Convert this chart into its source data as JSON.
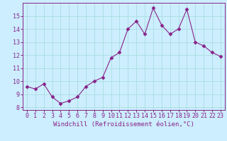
{
  "x": [
    0,
    1,
    2,
    3,
    4,
    5,
    6,
    7,
    8,
    9,
    10,
    11,
    12,
    13,
    14,
    15,
    16,
    17,
    18,
    19,
    20,
    21,
    22,
    23
  ],
  "y": [
    9.6,
    9.4,
    9.8,
    8.8,
    8.3,
    8.5,
    8.8,
    9.6,
    10.0,
    10.3,
    11.8,
    12.2,
    14.0,
    14.6,
    13.6,
    15.6,
    14.3,
    13.6,
    14.0,
    15.5,
    13.0,
    12.7,
    12.2,
    11.9
  ],
  "line_color": "#882288",
  "marker": "D",
  "marker_size": 2.5,
  "bg_color": "#cceeff",
  "grid_color": "#aadddd",
  "xlabel": "Windchill (Refroidissement éolien,°C)",
  "xlabel_color": "#882288",
  "xlabel_fontsize": 6.5,
  "tick_color": "#882288",
  "tick_fontsize": 6.0,
  "ylim": [
    7.8,
    16.0
  ],
  "xlim": [
    -0.5,
    23.5
  ],
  "yticks": [
    8,
    9,
    10,
    11,
    12,
    13,
    14,
    15
  ],
  "xticks": [
    0,
    1,
    2,
    3,
    4,
    5,
    6,
    7,
    8,
    9,
    10,
    11,
    12,
    13,
    14,
    15,
    16,
    17,
    18,
    19,
    20,
    21,
    22,
    23
  ]
}
